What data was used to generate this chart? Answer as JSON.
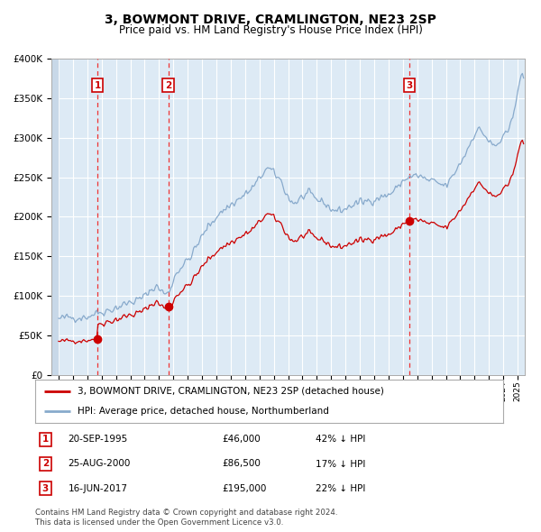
{
  "title": "3, BOWMONT DRIVE, CRAMLINGTON, NE23 2SP",
  "subtitle": "Price paid vs. HM Land Registry's House Price Index (HPI)",
  "legend_line1": "3, BOWMONT DRIVE, CRAMLINGTON, NE23 2SP (detached house)",
  "legend_line2": "HPI: Average price, detached house, Northumberland",
  "footer1": "Contains HM Land Registry data © Crown copyright and database right 2024.",
  "footer2": "This data is licensed under the Open Government Licence v3.0.",
  "transactions": [
    {
      "num": 1,
      "date": "20-SEP-1995",
      "date_val": 1995.72,
      "price": 46000,
      "label": "42% ↓ HPI"
    },
    {
      "num": 2,
      "date": "25-AUG-2000",
      "date_val": 2000.65,
      "price": 86500,
      "label": "17% ↓ HPI"
    },
    {
      "num": 3,
      "date": "16-JUN-2017",
      "date_val": 2017.45,
      "price": 195000,
      "label": "22% ↓ HPI"
    }
  ],
  "price_line_color": "#cc0000",
  "hpi_line_color": "#88aacc",
  "vline_color": "#ee3333",
  "dot_color": "#cc0000",
  "bg_color": "#ddeaf5",
  "hatch_bg": "#c8d8e8",
  "grid_color": "#ffffff",
  "ylim": [
    0,
    400000
  ],
  "yticks": [
    0,
    50000,
    100000,
    150000,
    200000,
    250000,
    300000,
    350000,
    400000
  ],
  "xlim": [
    1992.5,
    2025.5
  ],
  "hatch_end": 1993.0
}
